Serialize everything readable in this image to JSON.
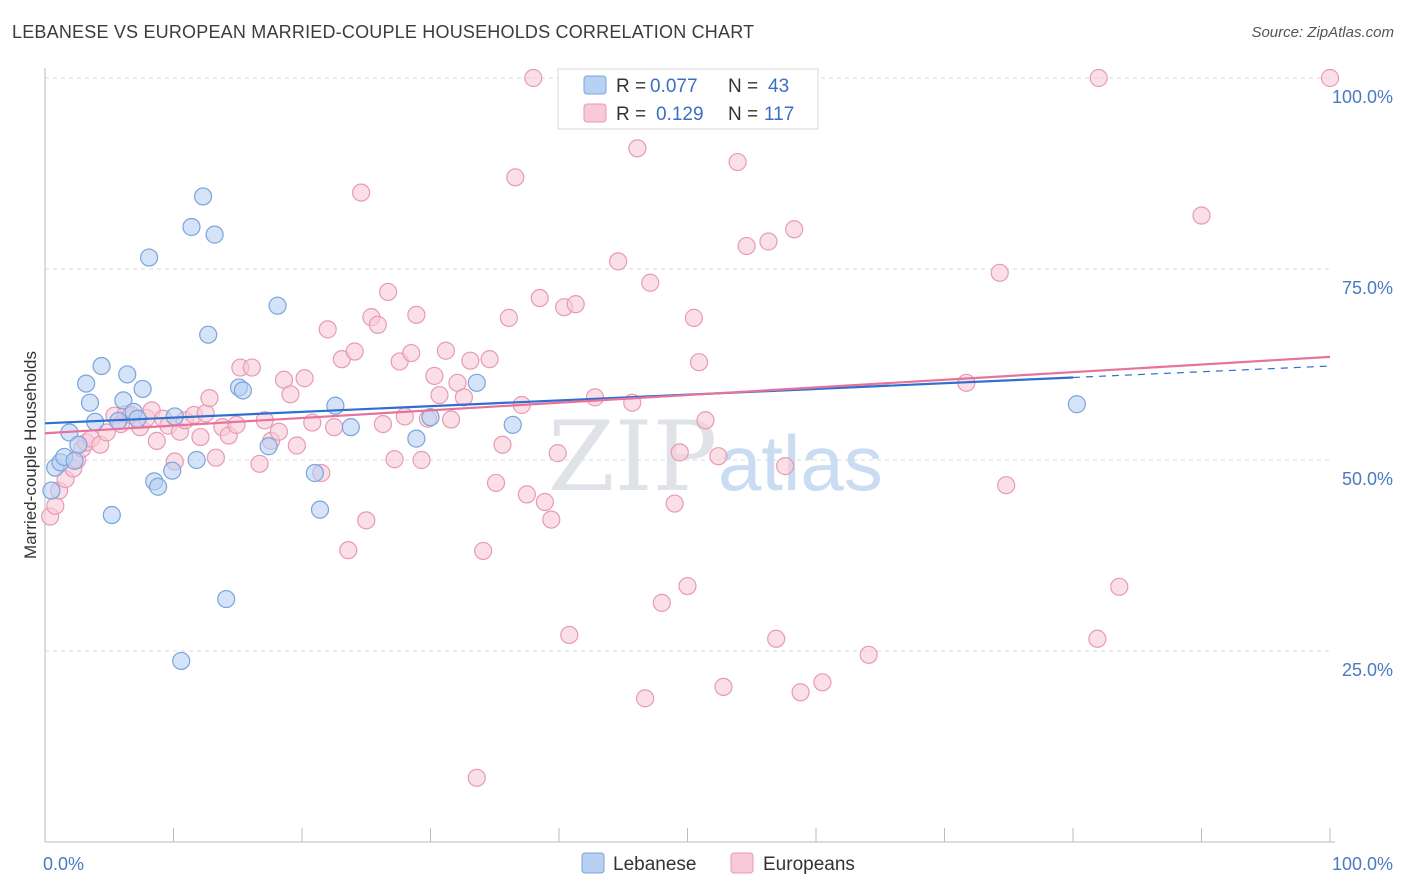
{
  "title": "LEBANESE VS EUROPEAN MARRIED-COUPLE HOUSEHOLDS CORRELATION CHART",
  "source": "Source: ZipAtlas.com",
  "watermark": {
    "zip": "ZIP",
    "atlas": "atlas"
  },
  "colors": {
    "lebanese_fill": "#b8d1f3",
    "lebanese_stroke": "#7aa4dc",
    "lebanese_line": "#2f6fcf",
    "europeans_fill": "#f8c9d7",
    "europeans_stroke": "#e89ab3",
    "europeans_line": "#e8739a",
    "grid": "#d9d9d9",
    "tick_label": "#4a7ac2"
  },
  "legend_top": {
    "rows": [
      {
        "r_label": "R =",
        "r_value": "0.077",
        "n_label": "N =",
        "n_value": "43"
      },
      {
        "r_label": "R =",
        "r_value": "0.129",
        "n_label": "N =",
        "n_value": "117"
      }
    ]
  },
  "legend_bottom": {
    "lebanese": "Lebanese",
    "europeans": "Europeans"
  },
  "chart_data": {
    "type": "scatter",
    "title": "LEBANESE VS EUROPEAN MARRIED-COUPLE HOUSEHOLDS CORRELATION CHART",
    "xlabel": "",
    "ylabel": "Married-couple Households",
    "xlim": [
      0,
      100
    ],
    "ylim": [
      0,
      100
    ],
    "x_tick_labels": [
      {
        "value": 0,
        "label": "0.0%"
      },
      {
        "value": 100,
        "label": "100.0%"
      }
    ],
    "y_tick_labels": [
      {
        "value": 25,
        "label": "25.0%"
      },
      {
        "value": 50,
        "label": "50.0%"
      },
      {
        "value": 75,
        "label": "75.0%"
      },
      {
        "value": 100,
        "label": "100.0%"
      }
    ],
    "grid": true,
    "legend_placement": "top-center",
    "series": [
      {
        "name": "Lebanese",
        "r": 0.077,
        "n": 43,
        "trend": {
          "x0": 0,
          "y0": 54.8,
          "x1": 80,
          "y1": 60.8,
          "dashed_to_x": 100,
          "dashed_to_y": 62.3
        },
        "points": [
          [
            0.5,
            46
          ],
          [
            0.8,
            49
          ],
          [
            1.2,
            49.7
          ],
          [
            1.5,
            50.4
          ],
          [
            1.9,
            53.6
          ],
          [
            2.3,
            49.9
          ],
          [
            2.6,
            52
          ],
          [
            3.2,
            60
          ],
          [
            3.5,
            57.5
          ],
          [
            3.9,
            55
          ],
          [
            4.4,
            62.3
          ],
          [
            5.2,
            42.8
          ],
          [
            5.7,
            55.1
          ],
          [
            6.1,
            57.8
          ],
          [
            6.4,
            61.2
          ],
          [
            6.9,
            56.3
          ],
          [
            7.2,
            55.4
          ],
          [
            7.6,
            59.3
          ],
          [
            8.1,
            76.5
          ],
          [
            8.5,
            47.2
          ],
          [
            8.8,
            46.5
          ],
          [
            9.9,
            48.6
          ],
          [
            10.1,
            55.7
          ],
          [
            10.6,
            23.7
          ],
          [
            11.4,
            80.5
          ],
          [
            11.8,
            50
          ],
          [
            12.3,
            84.5
          ],
          [
            12.7,
            66.4
          ],
          [
            13.2,
            79.5
          ],
          [
            14.1,
            31.8
          ],
          [
            15.1,
            59.5
          ],
          [
            15.4,
            59.1
          ],
          [
            17.4,
            51.8
          ],
          [
            18.1,
            70.2
          ],
          [
            21.0,
            48.3
          ],
          [
            21.4,
            43.5
          ],
          [
            22.6,
            57.1
          ],
          [
            23.8,
            54.3
          ],
          [
            28.9,
            52.8
          ],
          [
            30.0,
            55.6
          ],
          [
            33.6,
            60.1
          ],
          [
            80.3,
            57.3
          ],
          [
            36.4,
            54.6
          ]
        ]
      },
      {
        "name": "Europeans",
        "r": 0.129,
        "n": 117,
        "trend": {
          "x0": 0,
          "y0": 53.5,
          "x1": 100,
          "y1": 63.5
        },
        "points": [
          [
            0.4,
            42.6
          ],
          [
            0.8,
            44
          ],
          [
            1.1,
            46
          ],
          [
            1.6,
            47.5
          ],
          [
            2.2,
            48.9
          ],
          [
            2.5,
            50
          ],
          [
            2.9,
            51.5
          ],
          [
            3.2,
            52.3
          ],
          [
            3.6,
            52.8
          ],
          [
            4.3,
            52
          ],
          [
            4.8,
            53.6
          ],
          [
            5.4,
            55.8
          ],
          [
            5.9,
            54.7
          ],
          [
            6.3,
            56
          ],
          [
            6.7,
            55.9
          ],
          [
            7.4,
            54.3
          ],
          [
            7.9,
            55.5
          ],
          [
            8.3,
            56.5
          ],
          [
            8.7,
            52.5
          ],
          [
            9.2,
            55.4
          ],
          [
            9.6,
            54.5
          ],
          [
            10.1,
            49.8
          ],
          [
            10.5,
            53.7
          ],
          [
            10.9,
            55.2
          ],
          [
            11.6,
            55.9
          ],
          [
            12.1,
            53
          ],
          [
            12.5,
            56.1
          ],
          [
            12.8,
            58.1
          ],
          [
            13.3,
            50.3
          ],
          [
            13.8,
            54.3
          ],
          [
            14.3,
            53.2
          ],
          [
            14.9,
            54.6
          ],
          [
            15.2,
            62.1
          ],
          [
            16.1,
            62.1
          ],
          [
            16.7,
            49.5
          ],
          [
            17.1,
            55.2
          ],
          [
            17.6,
            52.5
          ],
          [
            18.2,
            53.7
          ],
          [
            18.6,
            60.5
          ],
          [
            19.1,
            58.6
          ],
          [
            19.6,
            51.9
          ],
          [
            20.2,
            60.7
          ],
          [
            20.8,
            54.9
          ],
          [
            21.5,
            48.3
          ],
          [
            22.0,
            67.1
          ],
          [
            22.5,
            54.3
          ],
          [
            23.1,
            63.2
          ],
          [
            23.6,
            38.2
          ],
          [
            24.1,
            64.2
          ],
          [
            24.6,
            85
          ],
          [
            25.0,
            42.1
          ],
          [
            25.4,
            68.7
          ],
          [
            25.9,
            67.7
          ],
          [
            26.3,
            54.7
          ],
          [
            26.7,
            72
          ],
          [
            27.2,
            50.1
          ],
          [
            27.6,
            62.9
          ],
          [
            28.0,
            55.7
          ],
          [
            28.5,
            64
          ],
          [
            28.9,
            69
          ],
          [
            29.3,
            50
          ],
          [
            29.8,
            55.4
          ],
          [
            30.3,
            61
          ],
          [
            30.7,
            58.5
          ],
          [
            31.2,
            64.3
          ],
          [
            31.6,
            55.3
          ],
          [
            32.1,
            60.1
          ],
          [
            32.6,
            58.2
          ],
          [
            33.1,
            63
          ],
          [
            33.6,
            8.4
          ],
          [
            34.1,
            38.1
          ],
          [
            34.6,
            63.2
          ],
          [
            35.1,
            47
          ],
          [
            35.6,
            52
          ],
          [
            36.1,
            68.6
          ],
          [
            36.6,
            87
          ],
          [
            37.1,
            57.2
          ],
          [
            37.5,
            45.5
          ],
          [
            38.0,
            100
          ],
          [
            38.5,
            71.2
          ],
          [
            38.9,
            44.5
          ],
          [
            39.4,
            42.2
          ],
          [
            39.9,
            50.9
          ],
          [
            40.4,
            70
          ],
          [
            40.8,
            27.1
          ],
          [
            41.3,
            70.4
          ],
          [
            42.8,
            58.2
          ],
          [
            44.6,
            76
          ],
          [
            45.7,
            57.5
          ],
          [
            46.1,
            90.8
          ],
          [
            46.7,
            18.8
          ],
          [
            47.1,
            73.2
          ],
          [
            48.0,
            31.3
          ],
          [
            48.5,
            97
          ],
          [
            49.0,
            44.3
          ],
          [
            49.4,
            51
          ],
          [
            50.0,
            33.5
          ],
          [
            50.5,
            68.6
          ],
          [
            50.9,
            62.8
          ],
          [
            51.4,
            55.2
          ],
          [
            52.4,
            50.5
          ],
          [
            52.8,
            20.3
          ],
          [
            53.9,
            89
          ],
          [
            54.6,
            78
          ],
          [
            56.3,
            78.6
          ],
          [
            56.9,
            26.6
          ],
          [
            57.6,
            49.2
          ],
          [
            58.3,
            80.2
          ],
          [
            58.8,
            19.6
          ],
          [
            60.5,
            20.9
          ],
          [
            64.1,
            24.5
          ],
          [
            71.7,
            60.1
          ],
          [
            74.3,
            74.5
          ],
          [
            74.8,
            46.7
          ],
          [
            81.9,
            26.6
          ],
          [
            82.0,
            100
          ],
          [
            83.6,
            33.4
          ],
          [
            90.0,
            82
          ],
          [
            100.0,
            100
          ]
        ]
      }
    ]
  }
}
